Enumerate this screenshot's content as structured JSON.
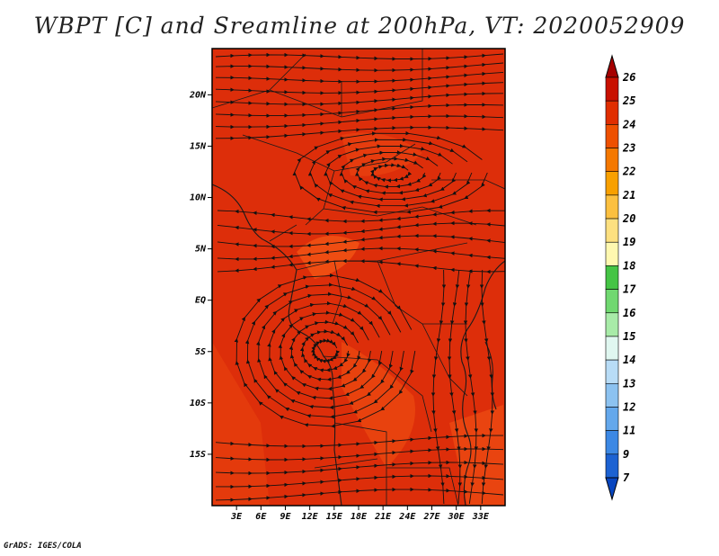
{
  "title": "WBPT [C] and Sreamline at 200hPa, VT: 2020052909",
  "credit": "GrADS: IGES/COLA",
  "map": {
    "lon_range": [
      0,
      36
    ],
    "lat_range": [
      -20,
      24.5
    ],
    "lon_ticks": [
      "3E",
      "6E",
      "9E",
      "12E",
      "15E",
      "18E",
      "21E",
      "24E",
      "27E",
      "30E",
      "33E"
    ],
    "lat_ticks": [
      "20N",
      "15N",
      "10N",
      "5N",
      "EQ",
      "5S",
      "10S",
      "15S"
    ],
    "dominant_fill_color": "#dd2e0a",
    "secondary_fill_color": "#ee4a10"
  },
  "colorbar": {
    "labels": [
      "26",
      "25",
      "24",
      "23",
      "22",
      "21",
      "20",
      "19",
      "18",
      "17",
      "16",
      "15",
      "14",
      "13",
      "12",
      "11",
      "9",
      "7"
    ],
    "colors": [
      "#a50000",
      "#c81000",
      "#e02e00",
      "#ee5000",
      "#f47800",
      "#f8a000",
      "#fcc040",
      "#fde080",
      "#fff8b0",
      "#45c445",
      "#70d870",
      "#a8eba8",
      "#e0f7f0",
      "#b8dcf6",
      "#8cc2f0",
      "#64a8ec",
      "#3c88e4",
      "#1c62d2",
      "#0846c0"
    ]
  }
}
